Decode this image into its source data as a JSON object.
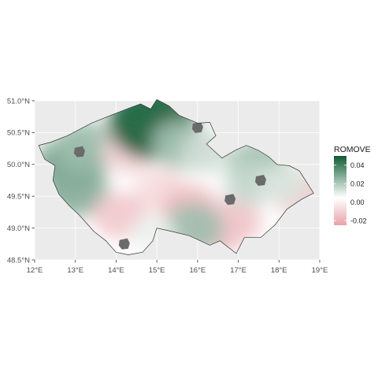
{
  "chart_data": {
    "type": "heatmap",
    "title": "",
    "xlabel": "",
    "ylabel": "",
    "x_ticks": [
      "12°E",
      "13°E",
      "14°E",
      "15°E",
      "16°E",
      "17°E",
      "18°E",
      "19°E"
    ],
    "y_ticks": [
      "48.5°N",
      "49.0°N",
      "49.5°N",
      "50.0°N",
      "50.5°N",
      "51.0°N"
    ],
    "xlim": [
      12.0,
      19.0
    ],
    "ylim": [
      48.5,
      51.0
    ],
    "legend": {
      "title": "ROMOVE",
      "position": "right",
      "labels": [
        "0.04",
        "0.02",
        "0.00",
        "-0.02"
      ],
      "values": [
        0.04,
        0.02,
        0.0,
        -0.02
      ],
      "range": [
        -0.025,
        0.05
      ]
    },
    "colors": {
      "panel": "#ebebeb",
      "grid": "#ffffff",
      "low": "#e8a3a8",
      "mid": "#ffffff",
      "high": "#0f5c34",
      "missing": "#6b6b6b",
      "outline": "#333333"
    },
    "fields": [
      {
        "lon": 12.9,
        "lat": 50.0,
        "value": 0.03
      },
      {
        "lon": 13.0,
        "lat": 49.6,
        "value": 0.025
      },
      {
        "lon": 13.2,
        "lat": 50.3,
        "value": 0.02
      },
      {
        "lon": 14.3,
        "lat": 50.2,
        "value": -0.012
      },
      {
        "lon": 15.1,
        "lat": 49.6,
        "value": -0.01
      },
      {
        "lon": 14.1,
        "lat": 49.2,
        "value": -0.015
      },
      {
        "lon": 14.9,
        "lat": 50.65,
        "value": 0.05
      },
      {
        "lon": 15.6,
        "lat": 50.3,
        "value": 0.018
      },
      {
        "lon": 16.2,
        "lat": 50.2,
        "value": 0.01
      },
      {
        "lon": 15.8,
        "lat": 49.3,
        "value": -0.018
      },
      {
        "lon": 16.5,
        "lat": 49.0,
        "value": -0.02
      },
      {
        "lon": 16.9,
        "lat": 49.1,
        "value": -0.015
      },
      {
        "lon": 15.9,
        "lat": 49.0,
        "value": 0.02
      },
      {
        "lon": 17.5,
        "lat": 50.0,
        "value": 0.02
      },
      {
        "lon": 17.3,
        "lat": 49.7,
        "value": 0.012
      },
      {
        "lon": 18.5,
        "lat": 49.55,
        "value": -0.015
      },
      {
        "lon": 18.1,
        "lat": 49.7,
        "value": 0.008
      },
      {
        "lon": 14.9,
        "lat": 48.9,
        "value": 0.004
      }
    ],
    "missing_areas": [
      {
        "lon": 13.1,
        "lat": 50.2
      },
      {
        "lon": 14.2,
        "lat": 48.75
      },
      {
        "lon": 16.0,
        "lat": 50.58
      },
      {
        "lon": 16.8,
        "lat": 49.45
      },
      {
        "lon": 17.55,
        "lat": 49.75
      }
    ]
  }
}
